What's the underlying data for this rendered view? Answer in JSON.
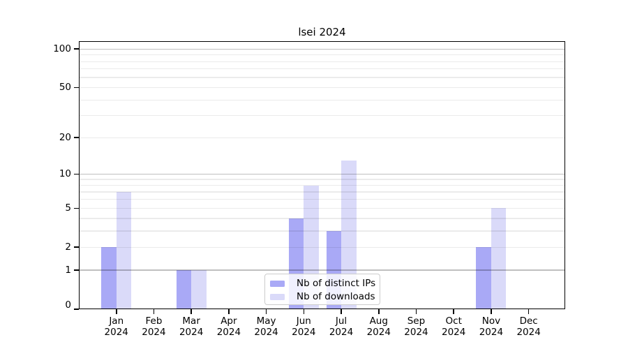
{
  "title": "lsei 2024",
  "colors": {
    "background": "#ffffff",
    "text": "#000000",
    "axis": "#000000",
    "major_gridline": "rgba(0,0,0,0.25)",
    "minor_gridline": "rgba(0,0,0,0.08)",
    "legend_border": "#cccccc",
    "legend_background": "rgba(255,255,255,0.82)",
    "distinct_ips_bar": "#a9a9f6",
    "downloads_bar": "#dadaf9"
  },
  "chart_data": {
    "type": "bar",
    "title": "lsei 2024",
    "categories": [
      "Jan 2024",
      "Feb 2024",
      "Mar 2024",
      "Apr 2024",
      "May 2024",
      "Jun 2024",
      "Jul 2024",
      "Aug 2024",
      "Sep 2024",
      "Oct 2024",
      "Nov 2024",
      "Dec 2024"
    ],
    "series": [
      {
        "name": "Nb of distinct IPs",
        "key": "ips",
        "color": "#a9a9f6",
        "values": [
          2,
          0,
          1,
          0,
          0,
          4,
          3,
          0,
          0,
          0,
          2,
          0
        ]
      },
      {
        "name": "Nb of downloads",
        "key": "downloads",
        "color": "#dadaf9",
        "values": [
          7,
          0,
          1,
          0,
          0,
          8,
          13,
          0,
          0,
          0,
          5,
          0
        ]
      }
    ],
    "yscale": "log1p",
    "ylim": [
      0,
      115
    ],
    "ytick_labels": [
      0,
      1,
      2,
      5,
      10,
      20,
      50,
      100
    ],
    "major_gridlines": [
      1,
      10,
      100
    ],
    "minor_gridlines": [
      2,
      3,
      4,
      5,
      6,
      7,
      8,
      9,
      20,
      30,
      40,
      50,
      60,
      70,
      80,
      90
    ],
    "grid": true,
    "legend_position": "lower center inside plot",
    "xlabel": "",
    "ylabel": ""
  }
}
